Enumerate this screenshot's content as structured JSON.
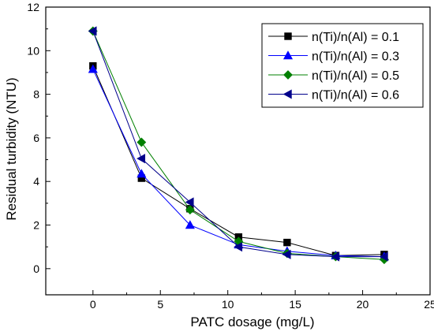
{
  "chart_data": {
    "type": "line",
    "xlabel": "PATC dosage (mg/L)",
    "ylabel": "Residual turbidity (NTU)",
    "xlim": [
      -3.5,
      25
    ],
    "ylim": [
      -1.2,
      12
    ],
    "xticks": [
      0,
      5,
      10,
      15,
      20,
      25
    ],
    "yticks": [
      0,
      2,
      4,
      6,
      8,
      10,
      12
    ],
    "x_tick_labels": [
      "0",
      "5",
      "10",
      "15",
      "20",
      "25"
    ],
    "y_tick_labels": [
      "0",
      "2",
      "4",
      "6",
      "8",
      "10",
      "12"
    ],
    "grid": false,
    "legend_position": "top-right",
    "series": [
      {
        "name": "n(Ti)/n(Al) = 0.1",
        "marker": "square",
        "color": "#000000",
        "x": [
          0,
          3.6,
          7.2,
          10.8,
          14.4,
          18,
          21.6
        ],
        "y": [
          9.3,
          4.15,
          2.75,
          1.45,
          1.2,
          0.6,
          0.65
        ]
      },
      {
        "name": "n(Ti)/n(Al) = 0.3",
        "marker": "triangle-up",
        "color": "#0000ff",
        "x": [
          0,
          3.6,
          7.2,
          10.8,
          14.4,
          18,
          21.6
        ],
        "y": [
          9.15,
          4.35,
          2.0,
          1.1,
          0.8,
          0.6,
          0.55
        ]
      },
      {
        "name": "n(Ti)/n(Al) = 0.5",
        "marker": "diamond",
        "color": "#008000",
        "x": [
          0,
          3.6,
          7.2,
          10.8,
          14.4,
          18,
          21.6
        ],
        "y": [
          10.9,
          5.8,
          2.7,
          1.25,
          0.7,
          0.55,
          0.42
        ]
      },
      {
        "name": "n(Ti)/n(Al) = 0.6",
        "marker": "triangle-left",
        "color": "#00008b",
        "x": [
          0,
          3.6,
          7.2,
          10.8,
          14.4,
          18,
          21.6
        ],
        "y": [
          10.9,
          5.05,
          3.05,
          1.0,
          0.65,
          0.55,
          0.55
        ]
      }
    ]
  }
}
